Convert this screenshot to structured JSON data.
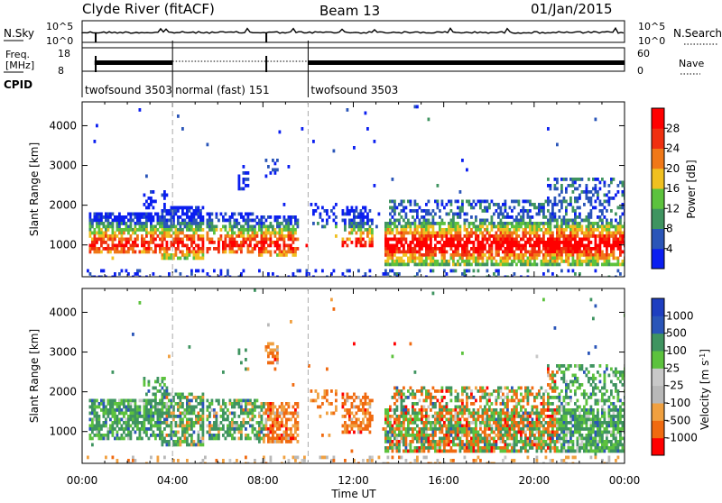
{
  "header": {
    "station": "Clyde River (fitACF)",
    "beam": "Beam 13",
    "date": "01/Jan/2015"
  },
  "noise_panel": {
    "left_label": "N.Sky",
    "left_ticks": [
      "10^5",
      "10^0"
    ],
    "right_label": "N.Search",
    "right_ticks": [
      "10^5",
      "10^0"
    ]
  },
  "freq_panel": {
    "left_label_1": "Freq.",
    "left_label_2": "[MHz]",
    "left_ticks": [
      "18",
      "8"
    ],
    "right_label": "Nave",
    "right_ticks": [
      "60",
      "0"
    ]
  },
  "cpid": {
    "label": "CPID",
    "segments": [
      {
        "name": "twofsound 3503",
        "start_h": 0.0,
        "end_h": 4.0
      },
      {
        "name": "normal (fast) 151",
        "start_h": 4.0,
        "end_h": 10.0
      },
      {
        "name": "twofsound 3503",
        "start_h": 10.0,
        "end_h": 24.0
      }
    ]
  },
  "chart_data": [
    {
      "type": "heatmap",
      "parameter": "power",
      "ylabel": "Slant Range [km]",
      "ylim": [
        200,
        4600
      ],
      "yticks": [
        1000,
        2000,
        3000,
        4000
      ],
      "xlim_hours": [
        0,
        24
      ],
      "colorbar_label": "Power [dB]",
      "colorbar_ticks": [
        "4",
        "8",
        "12",
        "16",
        "20",
        "24",
        "28"
      ],
      "colorbar_colors": [
        "#0a1ef0",
        "#2a55b8",
        "#3f9460",
        "#5cc23d",
        "#f0c020",
        "#f07818",
        "#f03010",
        "#ff0000"
      ]
    },
    {
      "type": "heatmap",
      "parameter": "velocity",
      "ylabel": "Slant Range [km]",
      "ylim": [
        200,
        4600
      ],
      "yticks": [
        1000,
        2000,
        3000,
        4000
      ],
      "xlim_hours": [
        0,
        24
      ],
      "xlabel": "Time UT",
      "xticks": [
        "00:00",
        "04:00",
        "08:00",
        "12:00",
        "16:00",
        "20:00",
        "00:00"
      ],
      "colorbar_label": "Velocity [m s",
      "colorbar_label_sup": "-1",
      "colorbar_label_end": "]",
      "colorbar_ticks": [
        "-1000",
        "-500",
        "-100",
        "-25",
        "25",
        "100",
        "500",
        "1000"
      ],
      "colorbar_colors": [
        "#ff0000",
        "#f06a10",
        "#f0a040",
        "#b8b8b8",
        "#c8c8c8",
        "#5cc23d",
        "#3f9460",
        "#2a55b8",
        "#1e3ec0"
      ]
    }
  ]
}
